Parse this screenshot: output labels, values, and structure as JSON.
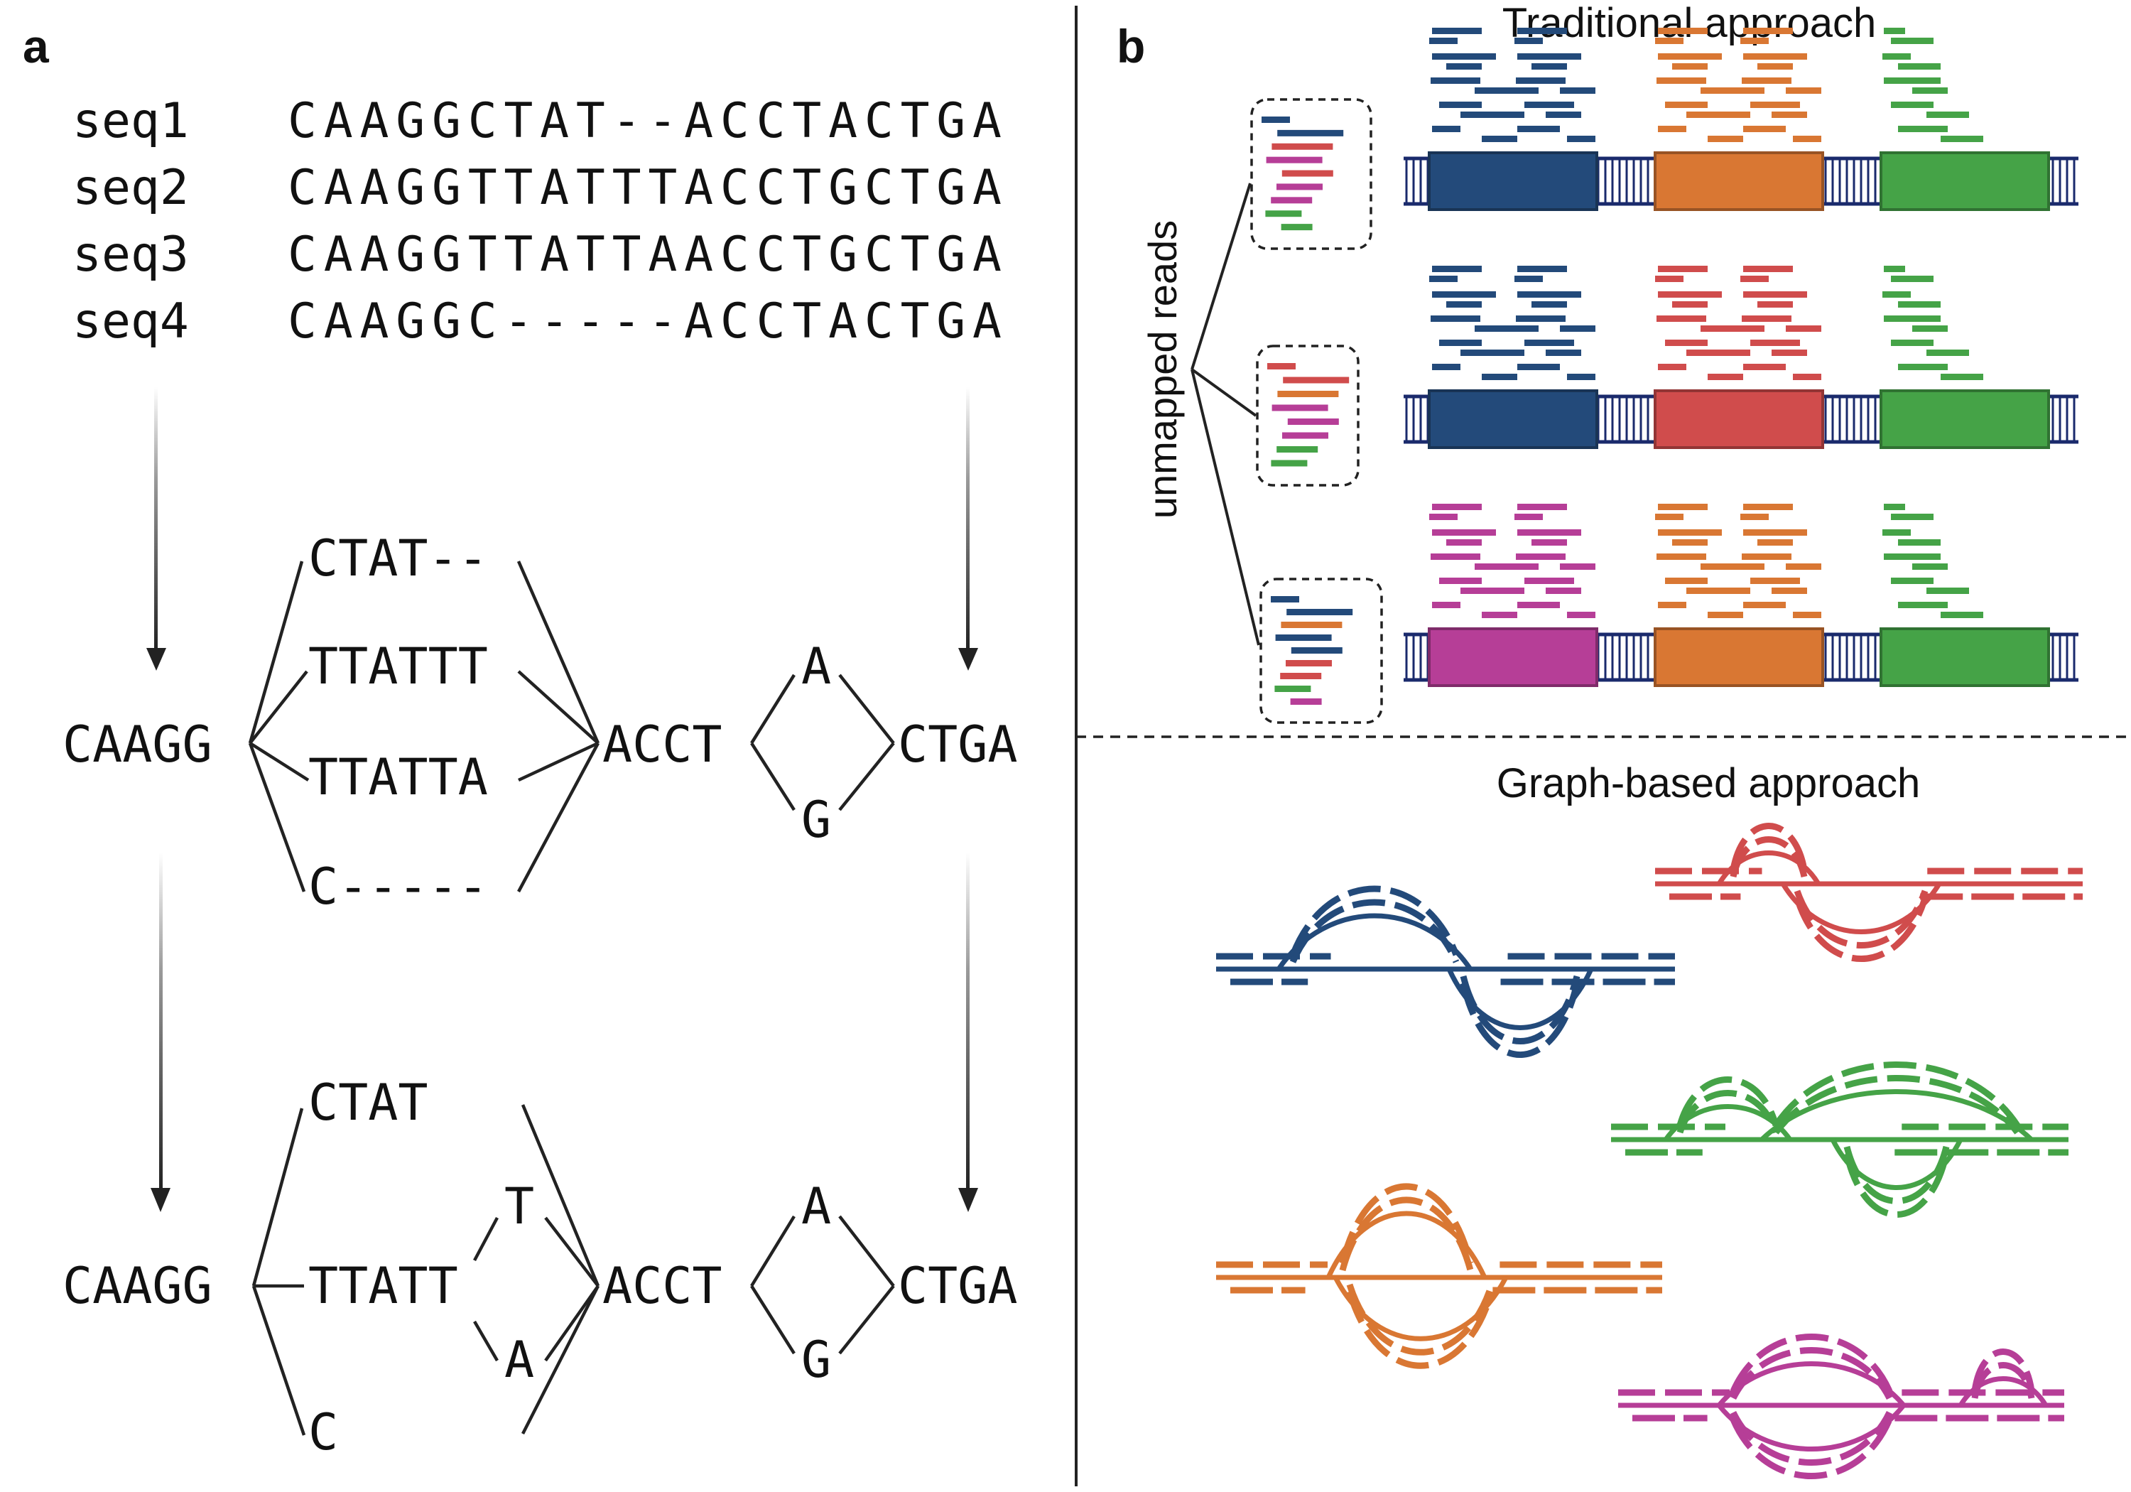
{
  "panel_a": {
    "label": "a",
    "alignment": [
      {
        "name": "seq1",
        "seq": "CAAGGCTAT--ACCTACTGA"
      },
      {
        "name": "seq2",
        "seq": "CAAGGTTATTTACCTGCTGA"
      },
      {
        "name": "seq3",
        "seq": "CAAGGTTATTAACCTGCTGA"
      },
      {
        "name": "seq4",
        "seq": "CAAGGC-----ACCTACTGA"
      }
    ],
    "graph1": {
      "start": "CAAGG",
      "branches": [
        "CTAT--",
        "TTATTT",
        "TTATTA",
        "C-----"
      ],
      "middle": "ACCT",
      "variant_top": "A",
      "variant_bottom": "G",
      "end": "CTGA"
    },
    "graph2": {
      "start": "CAAGG",
      "branch_top": "CTAT",
      "branch_mid": "TTATT",
      "branch_bottom": "C",
      "sub_top": "T",
      "sub_bottom": "A",
      "middle": "ACCT",
      "variant_top": "A",
      "variant_bottom": "G",
      "end": "CTGA"
    }
  },
  "panel_b": {
    "label": "b",
    "title_traditional": "Traditional approach",
    "title_graph": "Graph-based approach",
    "unmapped_label": "unmapped reads",
    "colors": {
      "blue": "#234a7a",
      "orange": "#d97733",
      "green": "#45a347",
      "red": "#d04c4c",
      "magenta": "#b63e97",
      "dna": "#1a2a6c"
    },
    "genomes": [
      {
        "blocks": [
          "blue",
          "orange",
          "green"
        ],
        "unmapped": [
          "blue",
          "blue",
          "red",
          "magenta",
          "red",
          "magenta",
          "magenta",
          "green",
          "green"
        ]
      },
      {
        "blocks": [
          "blue",
          "red",
          "green"
        ],
        "unmapped": [
          "red",
          "red",
          "orange",
          "magenta",
          "magenta",
          "magenta",
          "green",
          "green"
        ]
      },
      {
        "blocks": [
          "magenta",
          "orange",
          "green"
        ],
        "unmapped": [
          "blue",
          "blue",
          "orange",
          "blue",
          "blue",
          "red",
          "red",
          "green",
          "magenta"
        ]
      }
    ],
    "graphs": [
      "blue",
      "red",
      "green",
      "orange",
      "magenta"
    ]
  }
}
